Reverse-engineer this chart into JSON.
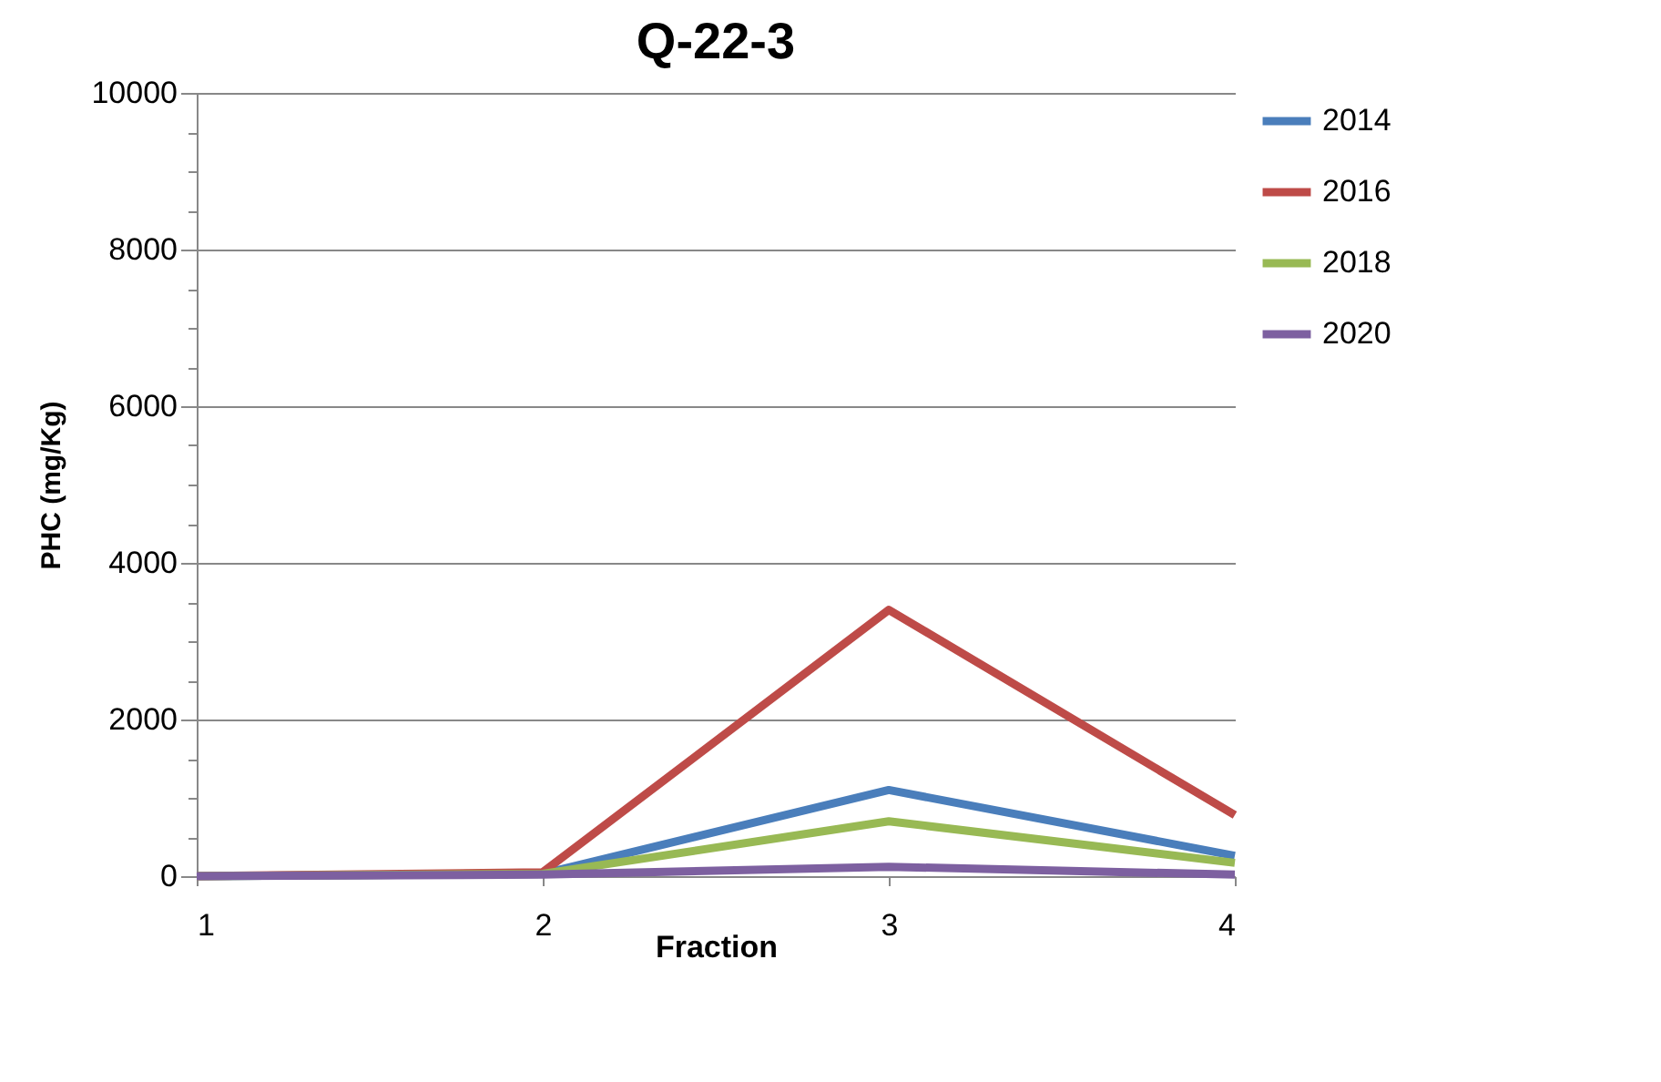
{
  "chart_data": {
    "type": "line",
    "title": "Q-22-3",
    "xlabel": "Fraction",
    "ylabel": "PHC (mg/Kg)",
    "x": [
      1,
      2,
      3,
      4
    ],
    "series": [
      {
        "name": "2014",
        "color": "#4a7ebb",
        "values": [
          0,
          30,
          1100,
          260
        ]
      },
      {
        "name": "2016",
        "color": "#be4b48",
        "values": [
          0,
          50,
          3400,
          780
        ]
      },
      {
        "name": "2018",
        "color": "#98b954",
        "values": [
          0,
          30,
          700,
          170
        ]
      },
      {
        "name": "2020",
        "color": "#7d60a0",
        "values": [
          0,
          20,
          120,
          20
        ]
      }
    ],
    "xlim": [
      1,
      4
    ],
    "xticks": [
      1,
      2,
      3,
      4
    ],
    "ylim": [
      0,
      10000
    ],
    "yticks": [
      0,
      {
        "value": 500,
        "label": null
      },
      {
        "value": 1000,
        "label": null
      },
      {
        "value": 1500,
        "label": null
      },
      2000,
      {
        "value": 2500,
        "label": null
      },
      {
        "value": 3000,
        "label": null
      },
      {
        "value": 3500,
        "label": null
      },
      4000,
      {
        "value": 4500,
        "label": null
      },
      {
        "value": 5000,
        "label": null
      },
      {
        "value": 5500,
        "label": null
      },
      6000,
      {
        "value": 6500,
        "label": null
      },
      {
        "value": 7000,
        "label": null
      },
      {
        "value": 7500,
        "label": null
      },
      8000,
      {
        "value": 8500,
        "label": null
      },
      {
        "value": 9000,
        "label": null
      },
      {
        "value": 9500,
        "label": null
      },
      10000
    ],
    "grid": "y",
    "legend": "right",
    "marker": "none",
    "line_style": "solid"
  }
}
